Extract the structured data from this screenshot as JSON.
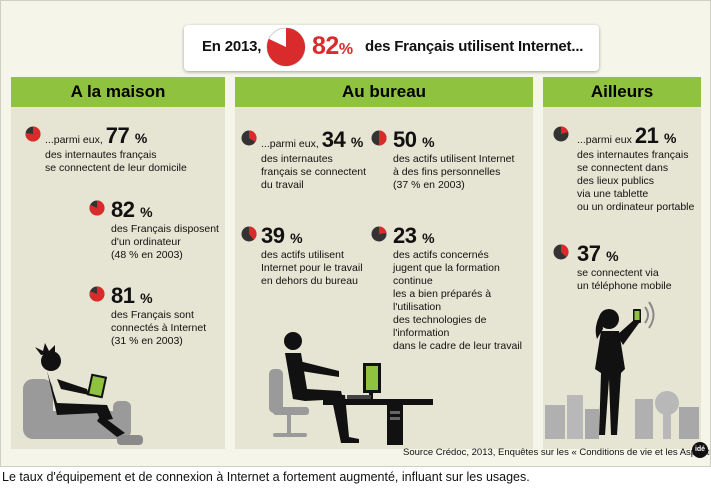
{
  "banner": {
    "prefix": "En 2013,",
    "percent": "82",
    "percent_unit": "%",
    "suffix": "des Français utilisent Internet...",
    "pie_fraction": 0.82
  },
  "columns": {
    "maison": {
      "title": "A  la maison",
      "stats": [
        {
          "lead": "...parmi eux,",
          "value": "77",
          "unit": "%",
          "lines": [
            "des internautes français",
            "se connectent de leur domicile"
          ],
          "fraction": 0.77
        },
        {
          "lead": "",
          "value": "82",
          "unit": "%",
          "lines": [
            "des Français disposent",
            "d'un ordinateur",
            "(48 % en 2003)"
          ],
          "fraction": 0.82
        },
        {
          "lead": "",
          "value": "81",
          "unit": "%",
          "lines": [
            "des Français sont",
            "connectés à Internet",
            "(31 % en 2003)"
          ],
          "fraction": 0.81
        }
      ]
    },
    "bureau": {
      "title": "Au bureau",
      "stats": [
        {
          "lead": "...parmi eux,",
          "value": "34",
          "unit": "%",
          "lines": [
            "des internautes",
            "français se connectent",
            "du travail"
          ],
          "fraction": 0.34
        },
        {
          "lead": "",
          "value": "50",
          "unit": "%",
          "lines": [
            "des actifs utilisent Internet",
            "à des fins personnelles",
            "(37 % en 2003)"
          ],
          "fraction": 0.5
        },
        {
          "lead": "",
          "value": "39",
          "unit": "%",
          "lines": [
            "des actifs utilisent",
            "Internet pour le travail",
            "en dehors du bureau"
          ],
          "fraction": 0.39
        },
        {
          "lead": "",
          "value": "23",
          "unit": "%",
          "lines": [
            "des actifs concernés",
            "jugent que la formation continue",
            "les a bien préparés à l'utilisation",
            "des technologies de l'information",
            "dans le cadre de leur travail"
          ],
          "fraction": 0.23
        }
      ]
    },
    "ailleurs": {
      "title": "Ailleurs",
      "stats": [
        {
          "lead": "...parmi eux",
          "value": "21",
          "unit": "%",
          "lines": [
            "des internautes français",
            "se connectent dans",
            "des lieux publics",
            "via une tablette",
            "ou un ordinateur portable"
          ],
          "fraction": 0.21
        },
        {
          "lead": "",
          "value": "37",
          "unit": "%",
          "lines": [
            "se connectent via",
            "un téléphone mobile"
          ],
          "fraction": 0.37
        }
      ]
    }
  },
  "source": "Source Crédoc, 2013,  Enquêtes sur les « Conditions de vie et les Aspirations »",
  "logo": "idé",
  "caption": "Le taux d'équipement et de connexion à Internet a fortement augmenté, influant sur les usages.",
  "colors": {
    "green": "#8fc23e",
    "red": "#d92b2b",
    "panel": "#e6e4d2",
    "background": "#f6f5ea"
  }
}
